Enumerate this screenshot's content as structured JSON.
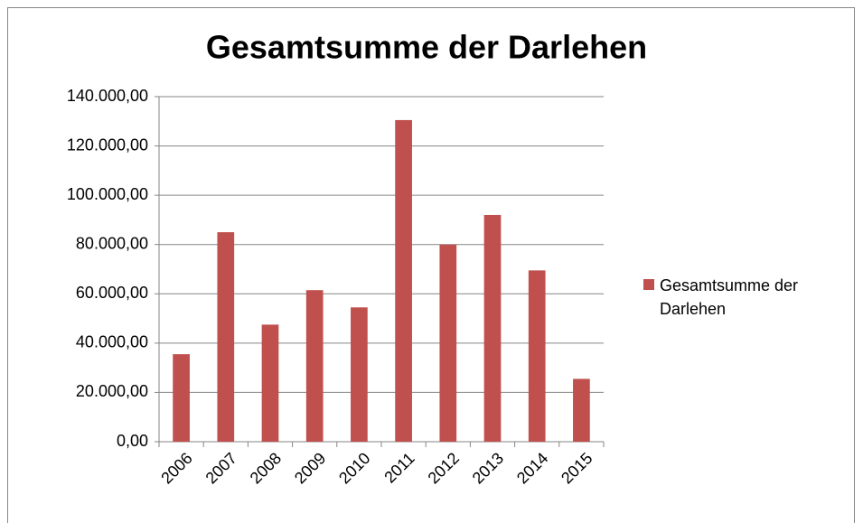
{
  "chart_data": {
    "type": "bar",
    "title": "Gesamtsumme der Darlehen",
    "categories": [
      "2006",
      "2007",
      "2008",
      "2009",
      "2010",
      "2011",
      "2012",
      "2013",
      "2014",
      "2015"
    ],
    "series": [
      {
        "name": "Gesamtsumme der Darlehen",
        "color": "#c0504d",
        "values": [
          35500,
          85000,
          47500,
          61500,
          54500,
          130500,
          80000,
          92000,
          69500,
          25500
        ]
      }
    ],
    "ylim": [
      0,
      140000
    ],
    "yticks": [
      {
        "value": 0,
        "label": "0,00"
      },
      {
        "value": 20000,
        "label": "20.000,00"
      },
      {
        "value": 40000,
        "label": "40.000,00"
      },
      {
        "value": 60000,
        "label": "60.000,00"
      },
      {
        "value": 80000,
        "label": "80.000,00"
      },
      {
        "value": 100000,
        "label": "100.000,00"
      },
      {
        "value": 120000,
        "label": "120.000,00"
      },
      {
        "value": 140000,
        "label": "140.000,00"
      }
    ],
    "grid": true,
    "legend": "right"
  }
}
